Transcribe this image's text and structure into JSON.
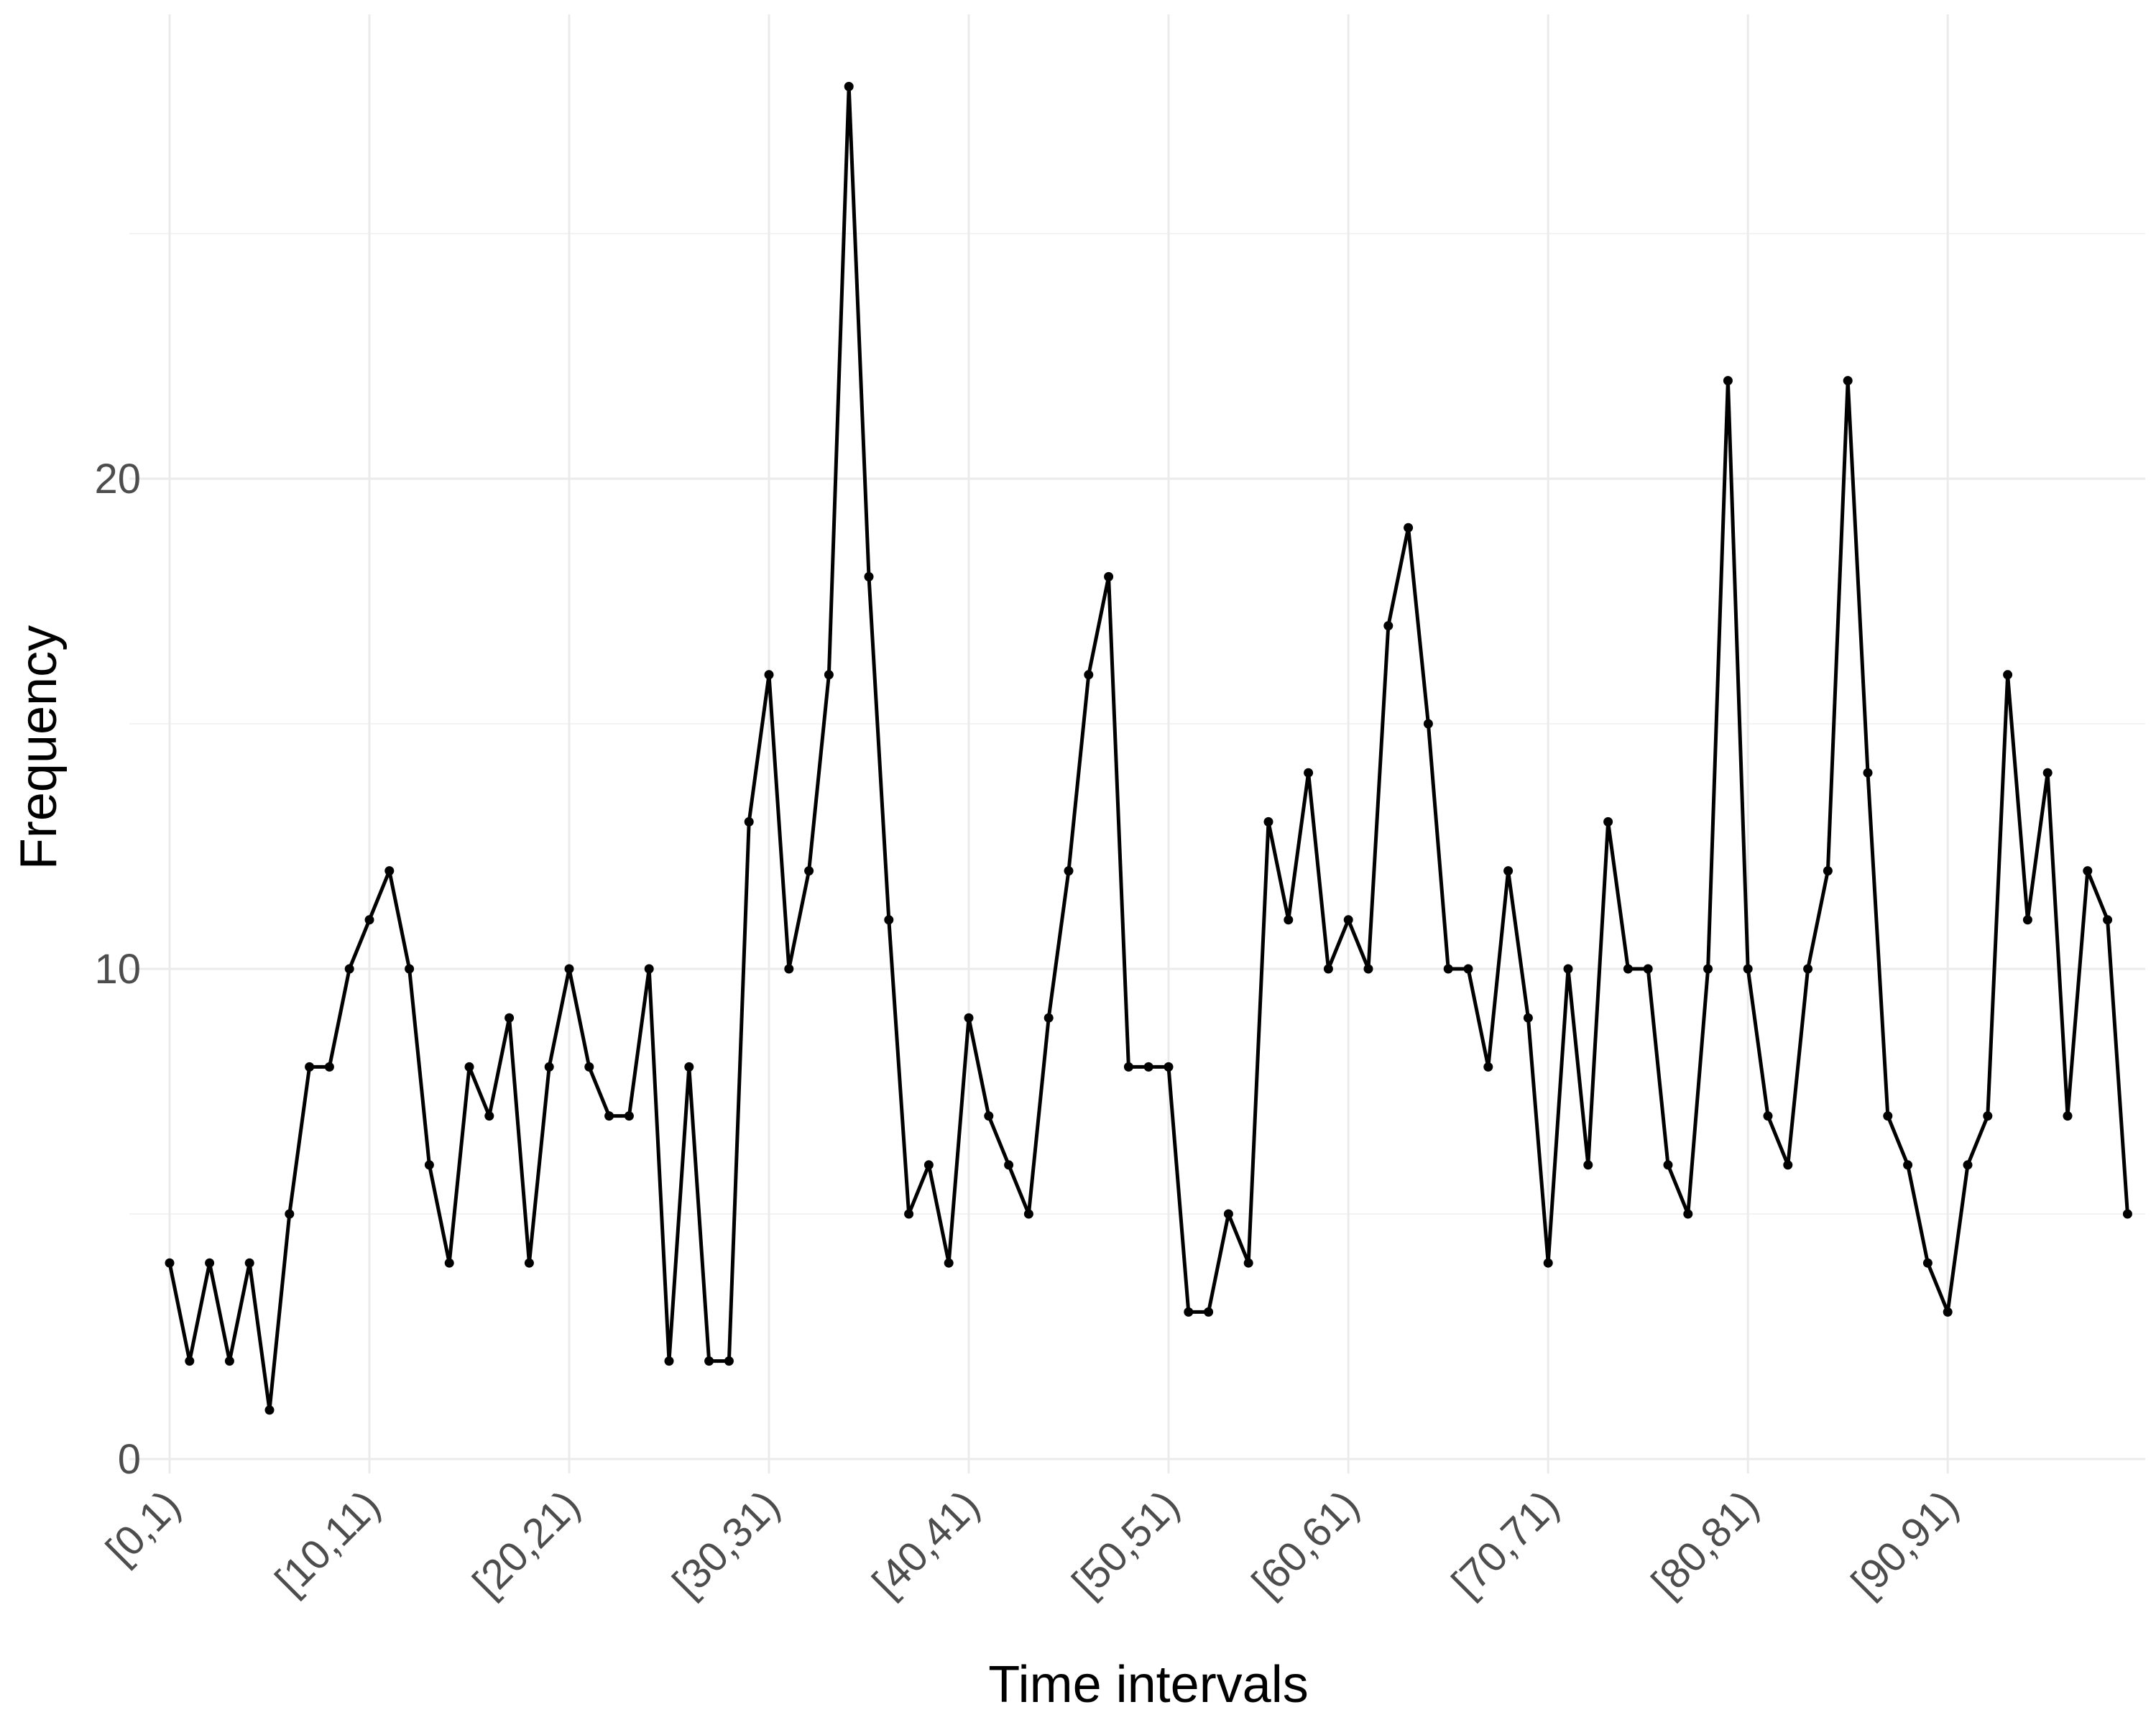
{
  "chart_data": {
    "type": "line",
    "xlabel": "Time intervals",
    "ylabel": "Frequency",
    "ylim": [
      0,
      28.2
    ],
    "yticks": [
      0,
      10,
      20
    ],
    "grid": true,
    "x_tick_labels": [
      "[0,1)",
      "[10,11)",
      "[20,21)",
      "[30,31)",
      "[40,41)",
      "[50,51)",
      "[60,61)",
      "[70,71)",
      "[80,81)",
      "[90,91)"
    ],
    "x_tick_positions": [
      0,
      10,
      20,
      30,
      40,
      50,
      59,
      69,
      79,
      89
    ],
    "x": [
      0,
      1,
      2,
      3,
      4,
      5,
      6,
      7,
      8,
      9,
      10,
      11,
      12,
      13,
      14,
      15,
      16,
      17,
      18,
      19,
      20,
      21,
      22,
      23,
      24,
      25,
      26,
      27,
      28,
      29,
      30,
      31,
      32,
      33,
      34,
      35,
      36,
      37,
      38,
      39,
      40,
      41,
      42,
      43,
      44,
      45,
      46,
      47,
      48,
      49,
      50,
      51,
      52,
      53,
      54,
      55,
      56,
      57,
      58,
      59,
      60,
      61,
      62,
      63,
      64,
      65,
      66,
      67,
      68,
      69,
      70,
      71,
      72,
      73,
      74,
      75,
      76,
      77,
      78,
      79,
      80,
      81,
      82,
      83,
      84,
      85,
      86,
      87,
      88,
      89,
      90,
      91,
      92,
      93,
      94,
      95,
      96,
      97,
      98
    ],
    "values": [
      4,
      2,
      4,
      2,
      4,
      1,
      5,
      8,
      8,
      10,
      11,
      12,
      10,
      6,
      4,
      8,
      7,
      9,
      4,
      8,
      10,
      8,
      7,
      7,
      10,
      2,
      8,
      2,
      2,
      13,
      16,
      10,
      12,
      16,
      28,
      18,
      11,
      5,
      6,
      4,
      9,
      7,
      6,
      5,
      9,
      12,
      16,
      18,
      8,
      8,
      8,
      3,
      3,
      5,
      4,
      13,
      11,
      14,
      10,
      11,
      10,
      17,
      19,
      15,
      10,
      10,
      8,
      12,
      9,
      4,
      10,
      6,
      13,
      10,
      10,
      6,
      5,
      10,
      22,
      10,
      7,
      6,
      10,
      12,
      22,
      14,
      7,
      6,
      4,
      3,
      6,
      7,
      16,
      11,
      14,
      7,
      12,
      11,
      5
    ]
  }
}
